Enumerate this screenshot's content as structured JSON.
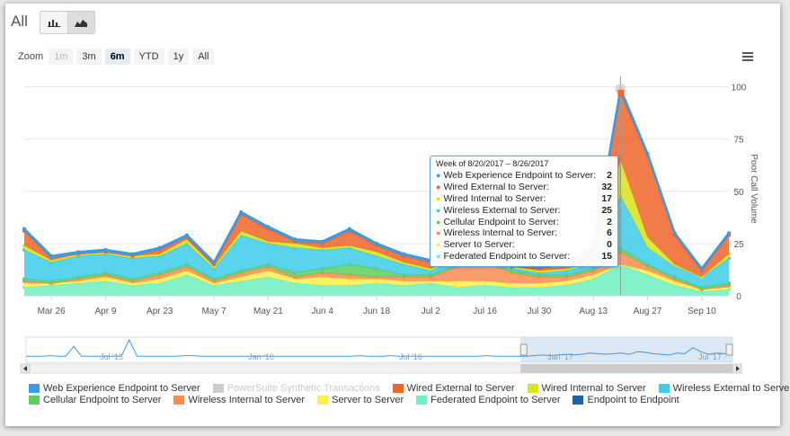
{
  "page": {
    "title": "All"
  },
  "toggle": {
    "column_icon": "column-chart-icon",
    "area_icon": "area-chart-icon"
  },
  "zoom": {
    "label": "Zoom",
    "buttons": [
      "1m",
      "3m",
      "6m",
      "YTD",
      "1y",
      "All"
    ],
    "selected": "6m",
    "disabled": [
      "1m"
    ]
  },
  "menu_icon": "hamburger-menu-icon",
  "chart_data": {
    "type": "area",
    "stacked": true,
    "x": [
      "Mar 19",
      "Mar 26",
      "Apr 2",
      "Apr 9",
      "Apr 16",
      "Apr 23",
      "Apr 30",
      "May 7",
      "May 14",
      "May 21",
      "May 28",
      "Jun 4",
      "Jun 11",
      "Jun 18",
      "Jun 25",
      "Jul 2",
      "Jul 9",
      "Jul 16",
      "Jul 23",
      "Jul 30",
      "Aug 6",
      "Aug 13",
      "Aug 20",
      "Aug 27",
      "Sep 3",
      "Sep 10",
      "Sep 17"
    ],
    "x_tick_labels": [
      "Mar 26",
      "Apr 9",
      "Apr 23",
      "May 7",
      "May 21",
      "Jun 4",
      "Jun 18",
      "Jul 2",
      "Jul 16",
      "Jul 30",
      "Aug 13",
      "Aug 27",
      "Sep 10"
    ],
    "ylabel": "Poor Call Volume",
    "ylim": [
      0,
      105
    ],
    "yticks": [
      0,
      25,
      50,
      75,
      100
    ],
    "series": [
      {
        "name": "Federated Endpoint to Server",
        "color": "#6ff0bf",
        "values": [
          4,
          5,
          6,
          7,
          5,
          6,
          10,
          5,
          7,
          9,
          6,
          5,
          5,
          6,
          5,
          6,
          4,
          5,
          4,
          4,
          5,
          8,
          15,
          10,
          5,
          2,
          3
        ]
      },
      {
        "name": "Server to Server",
        "color": "#fff04a",
        "values": [
          2,
          1,
          1,
          2,
          1,
          2,
          2,
          1,
          2,
          3,
          2,
          4,
          3,
          2,
          2,
          1,
          3,
          2,
          2,
          2,
          2,
          2,
          0,
          2,
          2,
          1,
          1
        ]
      },
      {
        "name": "Wireless Internal to Server",
        "color": "#fa8c52",
        "values": [
          1,
          0,
          1,
          1,
          1,
          2,
          2,
          1,
          2,
          2,
          1,
          2,
          2,
          1,
          2,
          2,
          7,
          9,
          5,
          3,
          2,
          2,
          6,
          2,
          1,
          0,
          1
        ]
      },
      {
        "name": "Cellular Endpoint to Server",
        "color": "#5ecf5e",
        "values": [
          1,
          1,
          1,
          1,
          1,
          1,
          1,
          1,
          1,
          1,
          2,
          2,
          5,
          4,
          1,
          1,
          1,
          1,
          1,
          1,
          1,
          1,
          2,
          1,
          1,
          1,
          1
        ]
      },
      {
        "name": "Wireless External to Server",
        "color": "#3dcdea",
        "values": [
          14,
          9,
          10,
          9,
          10,
          8,
          10,
          5,
          17,
          10,
          12,
          9,
          8,
          6,
          5,
          2,
          2,
          2,
          1,
          1,
          2,
          2,
          25,
          8,
          5,
          5,
          12
        ]
      },
      {
        "name": "Wired Internal to Server",
        "color": "#d8e31a",
        "values": [
          2,
          1,
          1,
          1,
          1,
          1,
          2,
          1,
          2,
          1,
          2,
          1,
          1,
          2,
          1,
          1,
          1,
          1,
          1,
          1,
          1,
          1,
          17,
          5,
          1,
          0,
          2
        ]
      },
      {
        "name": "Wired External to Server",
        "color": "#f0642a",
        "values": [
          7,
          1,
          0,
          0,
          0,
          2,
          1,
          1,
          8,
          6,
          1,
          2,
          7,
          3,
          3,
          3,
          0,
          1,
          0,
          1,
          2,
          6,
          32,
          39,
          14,
          3,
          9
        ]
      },
      {
        "name": "Web Experience Endpoint to Server",
        "color": "#3a9ae6",
        "values": [
          1,
          1,
          1,
          1,
          1,
          1,
          1,
          1,
          1,
          1,
          1,
          1,
          1,
          1,
          1,
          1,
          1,
          1,
          1,
          1,
          1,
          1,
          2,
          1,
          1,
          1,
          1
        ]
      }
    ],
    "highlight_index": 22
  },
  "tooltip": {
    "header": "Week of 8/20/2017 – 8/26/2017",
    "rows": [
      {
        "name": "Web Experience Endpoint to Server:",
        "value": "2",
        "color": "#3a9ae6"
      },
      {
        "name": "Wired External to Server:",
        "value": "32",
        "color": "#f0642a"
      },
      {
        "name": "Wired Internal to Server:",
        "value": "17",
        "color": "#d8e31a"
      },
      {
        "name": "Wireless External to Server:",
        "value": "25",
        "color": "#3dcdea"
      },
      {
        "name": "Cellular Endpoint to Server:",
        "value": "2",
        "color": "#5ecf5e"
      },
      {
        "name": "Wireless Internal to Server:",
        "value": "6",
        "color": "#fa8c52"
      },
      {
        "name": "Server to Server:",
        "value": "0",
        "color": "#fff04a"
      },
      {
        "name": "Federated Endpoint to Server:",
        "value": "15",
        "color": "#6ff0bf"
      }
    ]
  },
  "navigator": {
    "labels": [
      "Jul '15",
      "Jan '16",
      "Jul '16",
      "Jan '17",
      "Jul '17"
    ],
    "values": [
      5,
      5,
      5,
      6,
      5,
      5,
      20,
      5,
      5,
      5,
      5,
      5,
      5,
      30,
      5,
      5,
      5,
      5,
      5,
      5,
      6,
      6,
      5,
      5,
      5,
      5,
      5,
      5,
      5,
      5,
      5,
      5,
      5,
      5,
      5,
      5,
      5,
      5,
      5,
      5,
      5,
      5,
      6,
      5,
      5,
      5,
      6,
      5,
      5,
      5,
      5,
      5,
      5,
      5,
      5,
      5,
      5,
      5,
      6,
      5,
      5,
      5,
      5,
      5,
      6,
      7,
      6,
      7,
      8,
      7,
      8,
      10,
      9,
      8,
      9,
      10,
      8,
      12,
      11,
      9,
      8,
      7,
      10,
      9,
      18,
      12,
      8,
      10,
      9,
      10
    ],
    "selection_start": 0.7,
    "selection_end": 1.0
  },
  "legend": [
    {
      "name": "Web Experience Endpoint to Server",
      "color": "#3a9ae6",
      "hidden": false
    },
    {
      "name": "PowerSuite Synthetic Transactions",
      "color": "#cccccc",
      "hidden": true
    },
    {
      "name": "Wired External to Server",
      "color": "#f0642a",
      "hidden": false
    },
    {
      "name": "Wired Internal to Server",
      "color": "#d8e31a",
      "hidden": false
    },
    {
      "name": "Wireless External to Server",
      "color": "#3dcdea",
      "hidden": false
    },
    {
      "name": "Cellular Endpoint to Server",
      "color": "#5ecf5e",
      "hidden": false
    },
    {
      "name": "Wireless Internal to Server",
      "color": "#fa8c52",
      "hidden": false
    },
    {
      "name": "Server to Server",
      "color": "#fff04a",
      "hidden": false
    },
    {
      "name": "Federated Endpoint to Server",
      "color": "#6ff0bf",
      "hidden": false
    },
    {
      "name": "Endpoint to Endpoint",
      "color": "#1e5fb0",
      "hidden": false
    }
  ]
}
